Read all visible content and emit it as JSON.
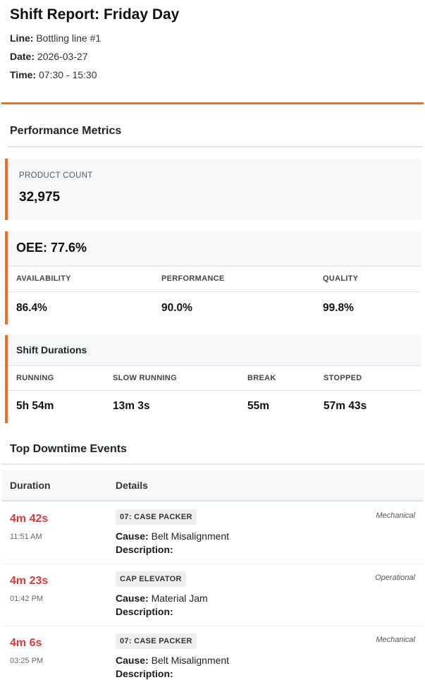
{
  "report": {
    "title": "Shift Report: Friday Day",
    "line_label": "Line:",
    "line_value": "Bottling line #1",
    "date_label": "Date:",
    "date_value": "2026-03-27",
    "time_label": "Time:",
    "time_value": "07:30 - 15:30"
  },
  "performance": {
    "section_title": "Performance Metrics",
    "product_count_label": "PRODUCT COUNT",
    "product_count_value": "32,975",
    "oee_title": "OEE: 77.6%",
    "oee_metrics": [
      {
        "label": "AVAILABILITY",
        "value": "86.4%"
      },
      {
        "label": "PERFORMANCE",
        "value": "90.0%"
      },
      {
        "label": "QUALITY",
        "value": "99.8%"
      }
    ]
  },
  "durations": {
    "title": "Shift Durations",
    "items": [
      {
        "label": "RUNNING",
        "value": "5h 54m"
      },
      {
        "label": "SLOW RUNNING",
        "value": "13m 3s"
      },
      {
        "label": "BREAK",
        "value": "55m"
      },
      {
        "label": "STOPPED",
        "value": "57m 43s"
      }
    ]
  },
  "downtime": {
    "section_title": "Top Downtime Events",
    "col_duration": "Duration",
    "col_details": "Details",
    "cause_label": "Cause:",
    "description_label": "Description:",
    "events": [
      {
        "duration": "4m 42s",
        "time": "11:51 AM",
        "machine": "07: CASE PACKER",
        "cause": "Belt Misalignment",
        "category": "Mechanical"
      },
      {
        "duration": "4m 23s",
        "time": "01:42 PM",
        "machine": "CAP ELEVATOR",
        "cause": "Material Jam",
        "category": "Operational"
      },
      {
        "duration": "4m 6s",
        "time": "03:25 PM",
        "machine": "07: CASE PACKER",
        "cause": "Belt Misalignment",
        "category": "Mechanical"
      }
    ]
  },
  "colors": {
    "accent": "#e8702a",
    "downtime_red": "#d63c3c"
  }
}
